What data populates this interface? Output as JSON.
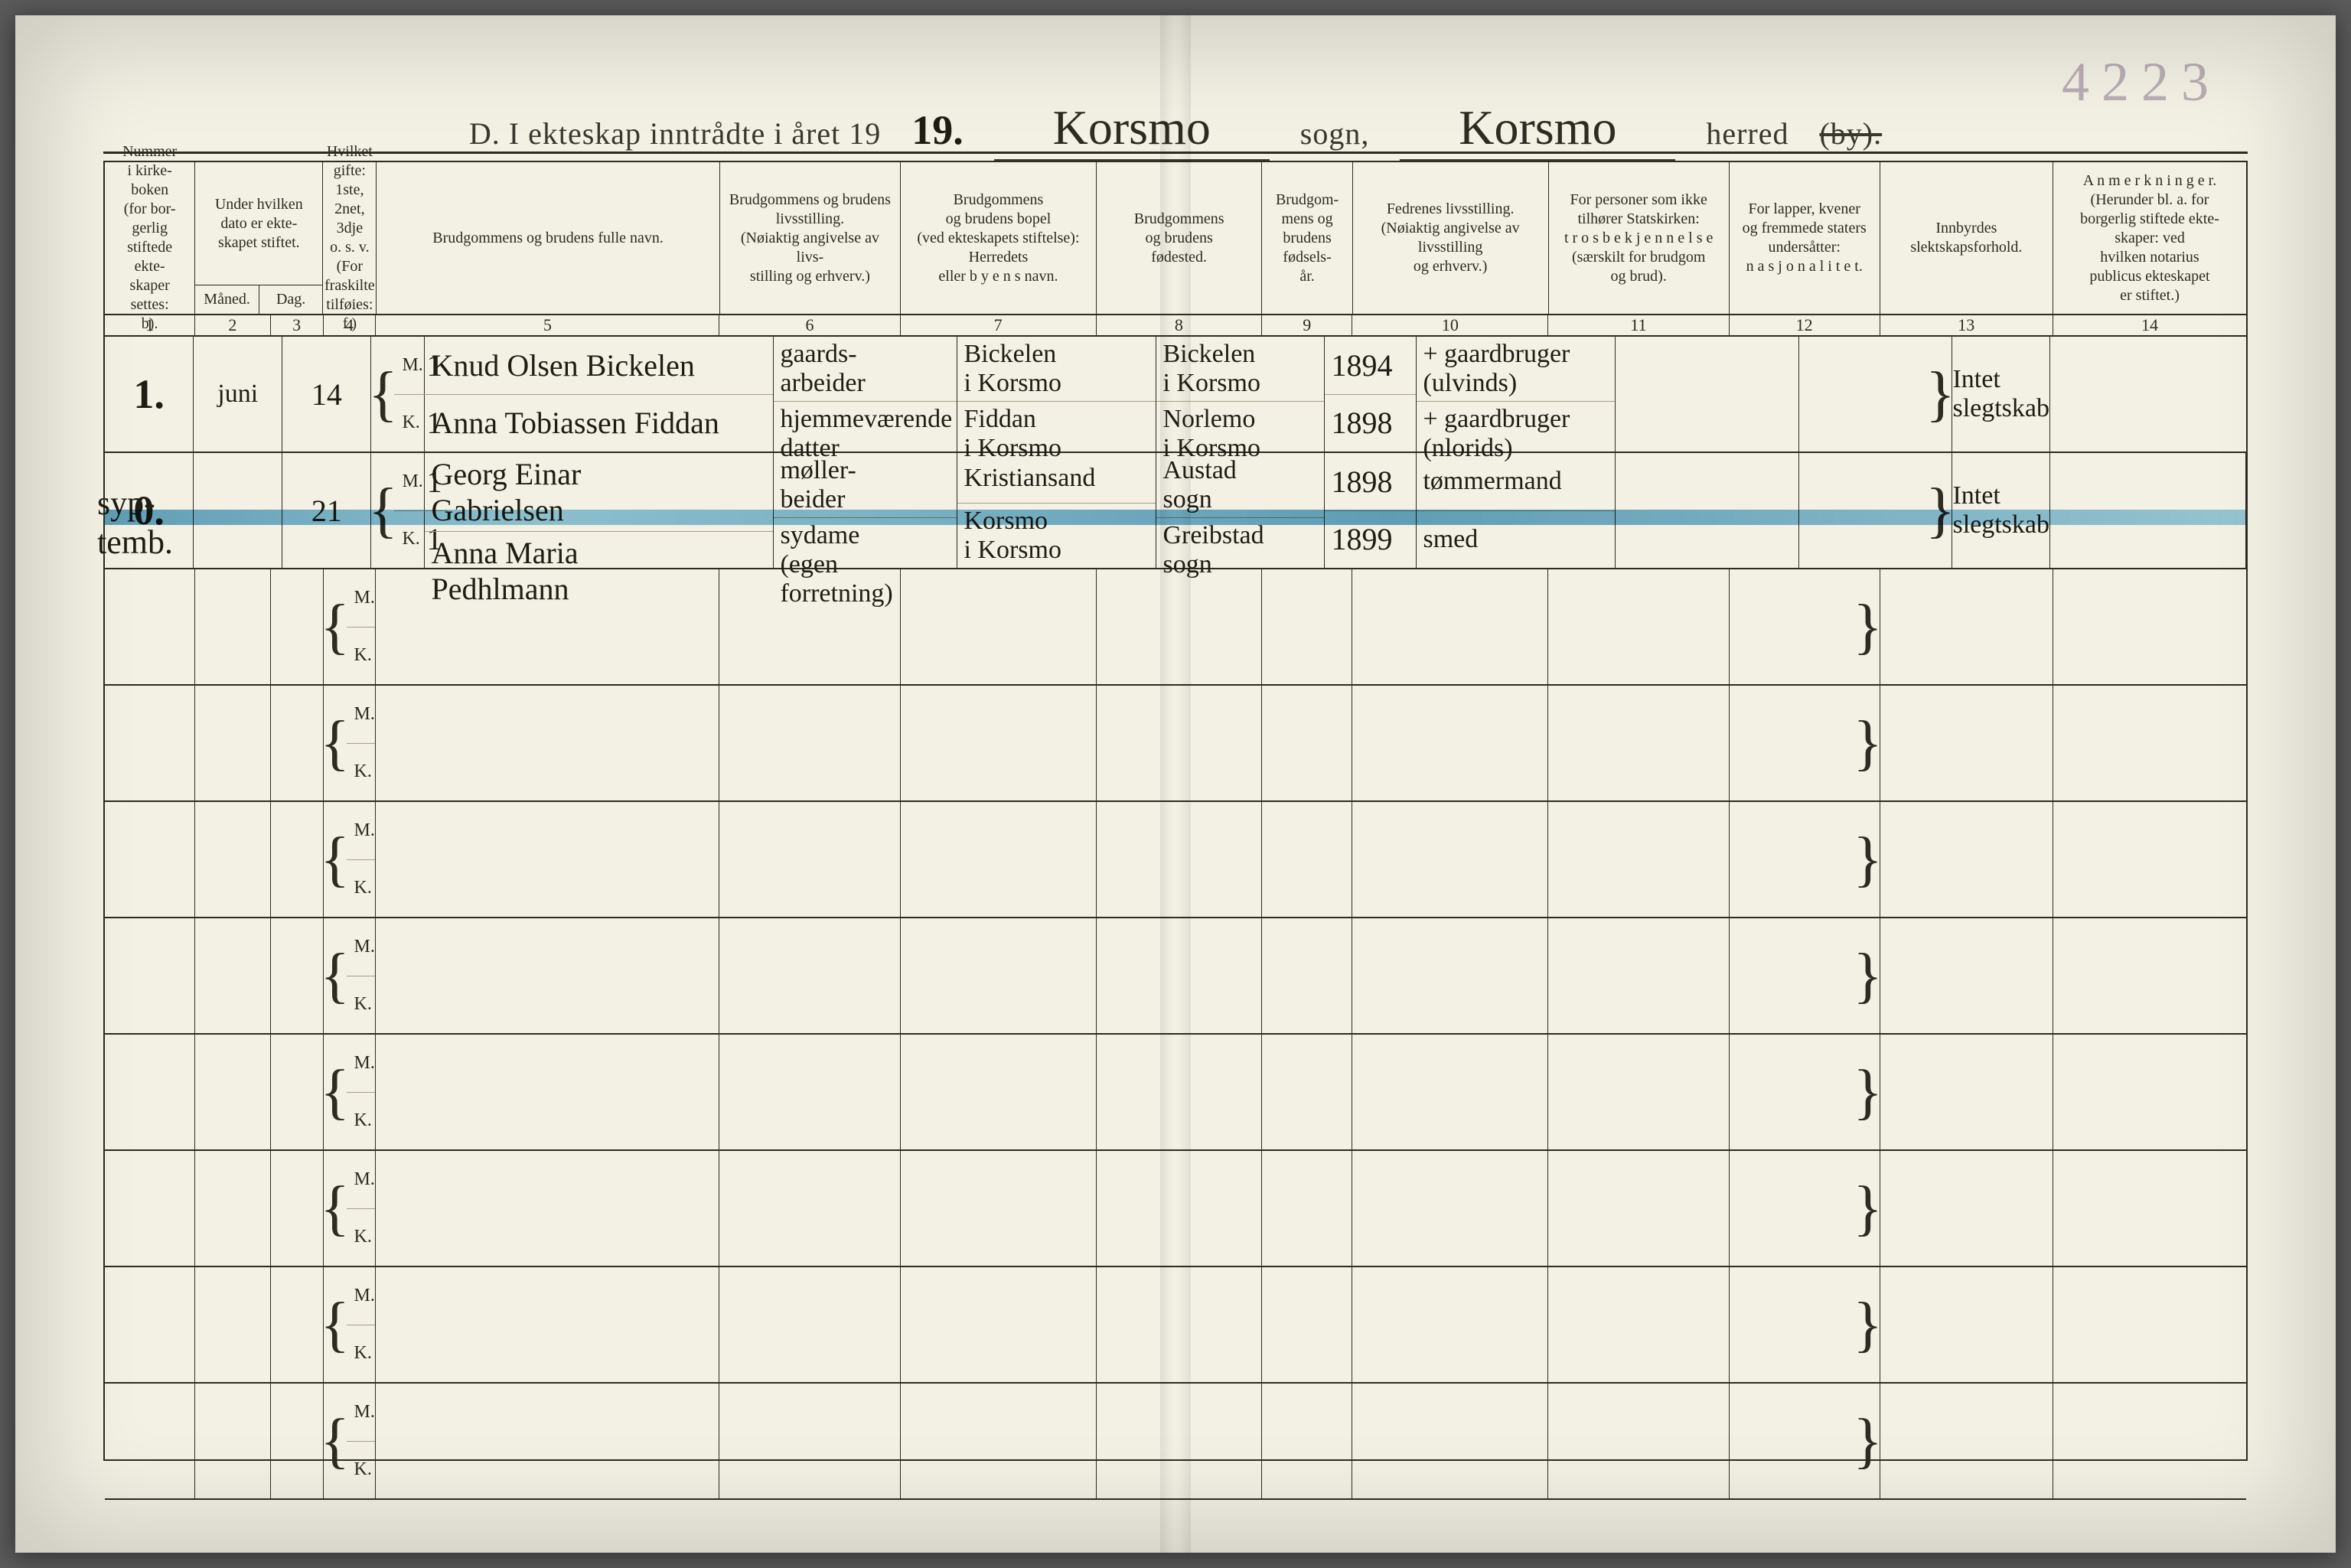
{
  "page_number_topright": "4223",
  "title": {
    "prefix": "D.  I ekteskap inntrådte i året 19",
    "year_hand": "19.",
    "sogn_hand": "Korsmo",
    "sogn_label": "sogn,",
    "herred_hand": "Korsmo",
    "herred_label": "herred",
    "struck": "(by)."
  },
  "columns": {
    "c1": "Nummer\ni kirke-\nboken\n(for bor-\ngerlig\nstiftede\nekte-\nskaper\nsettes:\nb).",
    "c2_3": "Under hvilken\ndato er ekte-\nskapet stiftet.",
    "c2_3_sub_m": "Måned.",
    "c2_3_sub_d": "Dag.",
    "c4": "Hvilket\ngifte:\n1ste, 2net, 3dje\no. s. v.\n(For fraskilte\ntilføies: f.)",
    "c5": "Brudgommens og brudens fulle navn.",
    "c6": "Brudgommens og brudens\nlivsstilling.\n(Nøiaktig angivelse av livs-\nstilling og erhverv.)",
    "c7": "Brudgommens\nog brudens bopel\n(ved ekteskapets stiftelse):\nHerredets\neller b y e n s navn.",
    "c8": "Brudgommens\nog brudens\nfødested.",
    "c9": "Brudgom-\nmens og\nbrudens\nfødsels-\når.",
    "c10": "Fedrenes livsstilling.\n(Nøiaktig angivelse av livsstilling\nog erhverv.)",
    "c11": "For personer som ikke\ntilhører Statskirken:\nt r o s b e k j e n n e l s e\n(særskilt for brudgom\nog brud).",
    "c12": "For lapper, kvener\nog fremmede staters\nundersåtter:\nn a s j o n a l i t e t.",
    "c13": "Innbyrdes\nslektskapsforhold.",
    "c14": "A n m e r k n i n g e r.\n(Herunder bl. a. for\nborgerlig stiftede ekte-\nskaper: ved\nhvilken notarius\npublicus ekteskapet\ner stiftet.)"
  },
  "colnums": [
    "1",
    "2",
    "3",
    "4",
    "5",
    "6",
    "7",
    "8",
    "9",
    "10",
    "11",
    "12",
    "13",
    "14"
  ],
  "mk_labels": {
    "m": "M.",
    "k": "K."
  },
  "brace_left": "{",
  "brace_right": "}",
  "entries": [
    {
      "seq": "1.",
      "month": "juni",
      "day": "14",
      "m": {
        "gifte": "1",
        "name": "Knud Olsen Bickelen",
        "stilling": "gaards-\narbeider",
        "bopel": "Bickelen\ni Korsmo",
        "fodested": "Bickelen\ni Korsmo",
        "aar": "1894",
        "fedre": "+ gaardbruger\n(ulvinds)"
      },
      "k": {
        "gifte": "1",
        "name": "Anna Tobiassen Fiddan",
        "stilling": "hjemmeværende\ndatter",
        "bopel": "Fiddan\ni Korsmo",
        "fodested": "Norlemo\ni Korsmo",
        "aar": "1898",
        "fedre": "+ gaardbruger\n(nlorids)"
      },
      "col13": "Intet\nslegtskab"
    },
    {
      "seq": "0.",
      "margin": "syp-\ntemb.",
      "month": "",
      "day": "21",
      "m": {
        "gifte": "1",
        "name": "Georg Einar\nGabrielsen",
        "stilling": "møller-\nbeider",
        "bopel": "Kristiansand",
        "fodested": "Austad\nsogn",
        "aar": "1898",
        "fedre": "tømmermand"
      },
      "k": {
        "gifte": "1",
        "name": "Anna Maria\nPedhlmann",
        "stilling": "sydame\n(egen forretning)",
        "bopel": "Korsmo\ni Korsmo",
        "fodested": "Greibstad\nsogn",
        "aar": "1899",
        "fedre": "smed"
      },
      "col13": "Intet\nslegtskab",
      "bluebar": true
    }
  ],
  "empty_rows": 8,
  "style": {
    "page_bg": "#f3f0e4",
    "ink": "#2e2b22",
    "hand_ink": "#1f1c14",
    "pencil": "#b9aeb3",
    "blue": "#2f88ba"
  }
}
